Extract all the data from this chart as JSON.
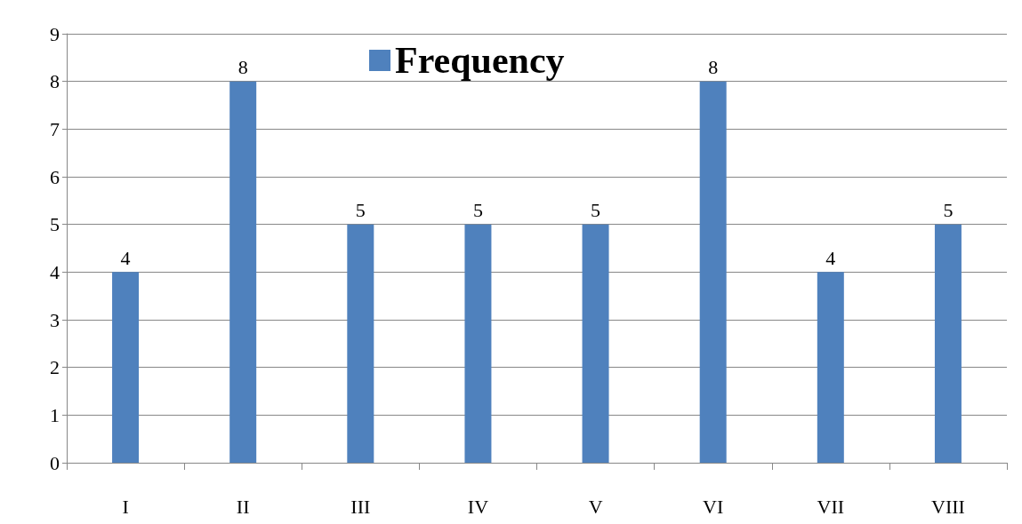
{
  "chart_data": {
    "type": "bar",
    "categories": [
      "I",
      "II",
      "III",
      "IV",
      "V",
      "VI",
      "VII",
      "VIII"
    ],
    "series": [
      {
        "name": "Frequency",
        "color": "#4f81bd",
        "values": [
          4,
          8,
          5,
          5,
          5,
          8,
          4,
          5
        ]
      }
    ],
    "ylim": [
      0,
      9
    ],
    "yticks": [
      0,
      1,
      2,
      3,
      4,
      5,
      6,
      7,
      8,
      9
    ],
    "grid": "y",
    "legend": "top",
    "data_labels": true
  }
}
